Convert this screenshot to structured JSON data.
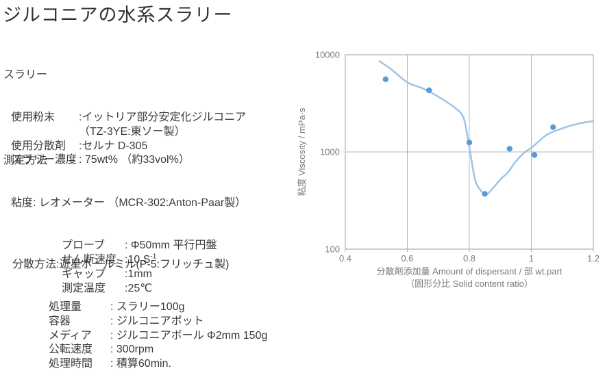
{
  "page": {
    "title": "ジルコニアの水系スラリー"
  },
  "sections": [
    {
      "heading": "スラリー",
      "rows": [
        {
          "label": "使用粉末",
          "value": ":イットリア部分安定化ジルコニア"
        },
        {
          "label": "",
          "value": "（TZ-3YE:東ソー製）"
        },
        {
          "label": "使用分散剤",
          "value": ":セルナ D-305"
        },
        {
          "label": "スラリー濃度",
          "value": ": 75wt% （約33vol%）"
        }
      ]
    },
    {
      "heading": "測定方法",
      "intro": "粘度: レオメーター （MCR-302:Anton-Paar製）",
      "rows": [
        {
          "label": "プローブ",
          "value": ": Φ50mm 平行円盤"
        },
        {
          "label": "せん断速度",
          "value": ":10 S",
          "sup": "-1"
        },
        {
          "label": "ギャップ",
          "value": ":1mm"
        },
        {
          "label": "測定温度",
          "value": ":25℃"
        }
      ]
    },
    {
      "heading": "",
      "intro": "分散方法:遊星ボールミル(P-5:フリッチュ製)",
      "rows": [
        {
          "label": "処理量",
          "value": ": スラリー100g"
        },
        {
          "label": "容器",
          "value": ": ジルコニアポット"
        },
        {
          "label": "メディア",
          "value": ": ジルコニアボール Φ2mm 150g"
        },
        {
          "label": "公転速度",
          "value": ": 300rpm"
        },
        {
          "label": "処理時間",
          "value": ": 積算60min."
        }
      ]
    }
  ],
  "chart_data": {
    "type": "scatter",
    "title": "",
    "xlabel": "分散剤添加量 Amount of dispersant / 部 wt.part",
    "xlabel_line2": "（固形分比 Solid content ratio）",
    "ylabel": "粘度 Viscosity / mPa·s",
    "xlim": [
      0.4,
      1.2
    ],
    "x_ticks": [
      "0.4",
      "0.6",
      "0.8",
      "1",
      "1.2"
    ],
    "x_tick_values": [
      0.4,
      0.6,
      0.8,
      1,
      1.2
    ],
    "y_scale": "log",
    "ylim": [
      100,
      10000
    ],
    "y_ticks": [
      "100",
      "1000",
      "10000"
    ],
    "y_tick_values": [
      100,
      1000,
      10000
    ],
    "grid": true,
    "legend": false,
    "points": [
      {
        "x": 0.53,
        "y": 5600
      },
      {
        "x": 0.67,
        "y": 4300
      },
      {
        "x": 0.8,
        "y": 1250
      },
      {
        "x": 0.85,
        "y": 370
      },
      {
        "x": 0.93,
        "y": 1080
      },
      {
        "x": 1.01,
        "y": 930
      },
      {
        "x": 1.07,
        "y": 1800
      }
    ],
    "trend_line": [
      [
        0.51,
        8600
      ],
      [
        0.55,
        7000
      ],
      [
        0.6,
        5200
      ],
      [
        0.65,
        4500
      ],
      [
        0.7,
        3700
      ],
      [
        0.75,
        2900
      ],
      [
        0.78,
        2300
      ],
      [
        0.795,
        1400
      ],
      [
        0.805,
        900
      ],
      [
        0.82,
        500
      ],
      [
        0.84,
        390
      ],
      [
        0.855,
        365
      ],
      [
        0.875,
        420
      ],
      [
        0.9,
        520
      ],
      [
        0.925,
        620
      ],
      [
        0.95,
        800
      ],
      [
        0.98,
        1000
      ],
      [
        1.0,
        1100
      ],
      [
        1.05,
        1500
      ],
      [
        1.1,
        1750
      ],
      [
        1.15,
        1950
      ],
      [
        1.2,
        2080
      ]
    ],
    "colors": {
      "point": "#5b9bd5",
      "line": "#9dc3e6",
      "grid": "#b5b5b5",
      "border": "#adadad",
      "axis_text": "#7a7a7a"
    }
  }
}
